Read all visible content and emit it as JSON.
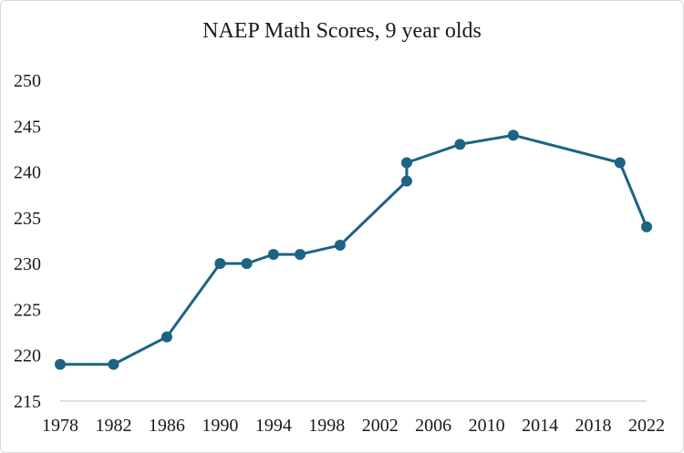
{
  "chart_data": {
    "type": "line",
    "title": "NAEP Math Scores, 9 year olds",
    "xlabel": "",
    "ylabel": "",
    "ylim": [
      215,
      250
    ],
    "xlim": [
      1978,
      2022
    ],
    "yticks": [
      "215",
      "220",
      "225",
      "230",
      "235",
      "240",
      "245",
      "250"
    ],
    "xticks": [
      "1978",
      "1982",
      "1986",
      "1990",
      "1994",
      "1998",
      "2002",
      "2006",
      "2010",
      "2014",
      "2018",
      "2022"
    ],
    "grid": false,
    "legend": "none",
    "color": "#1d6384",
    "series": [
      {
        "x": [
          1978,
          1982,
          1986,
          1990,
          1992,
          1994,
          1996,
          1999,
          2004,
          2004,
          2008,
          2012,
          2020,
          2022
        ],
        "y": [
          219,
          219,
          222,
          230,
          230,
          231,
          231,
          232,
          239,
          241,
          243,
          244,
          241,
          234
        ]
      }
    ]
  }
}
